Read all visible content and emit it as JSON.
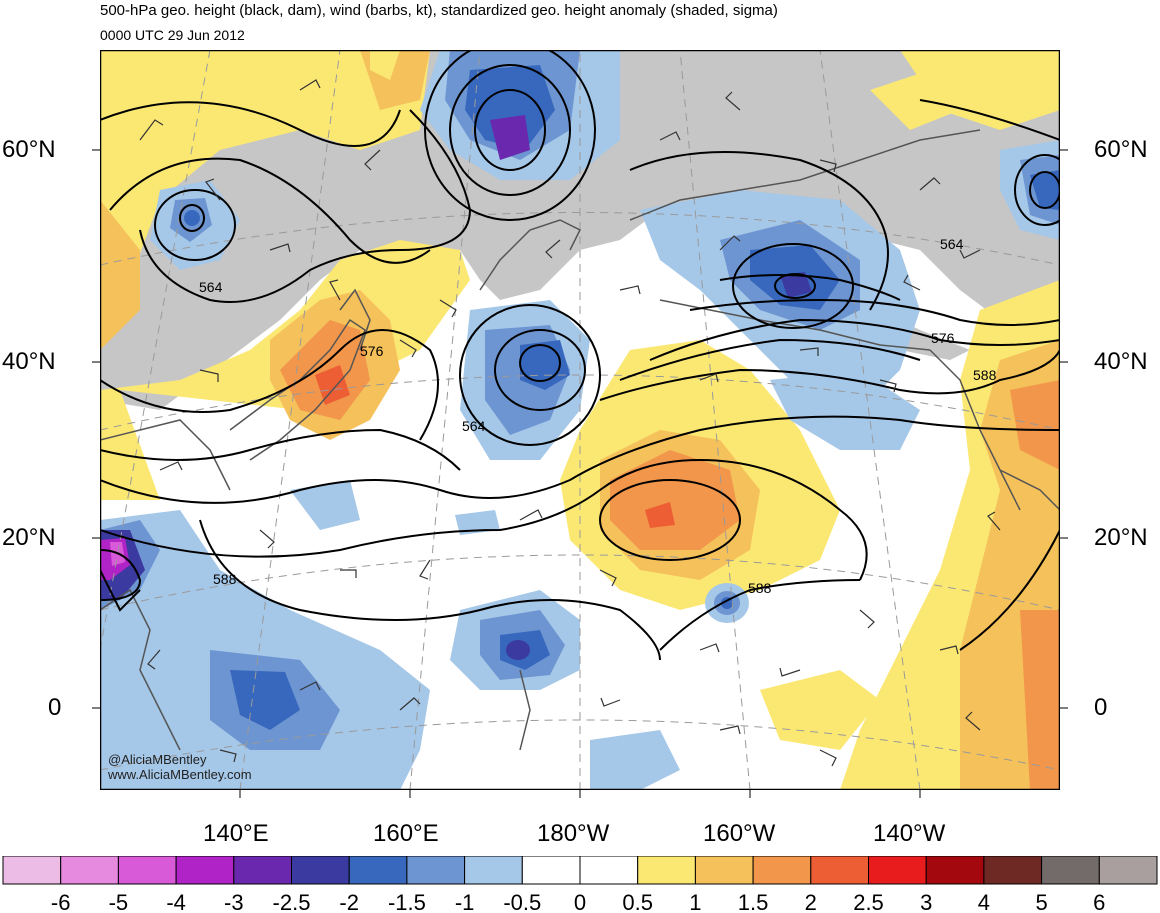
{
  "title": "500-hPa geo. height (black, dam), wind (barbs, kt), standardized geo. height anomaly (shaded, sigma)",
  "subtitle": "0000 UTC 29 Jun 2012",
  "lat_labels": [
    "60°N",
    "40°N",
    "20°N",
    "0"
  ],
  "lon_labels": [
    "140°E",
    "160°E",
    "180°W",
    "160°W",
    "140°W"
  ],
  "contour_labels": [
    "564",
    "576",
    "564",
    "564",
    "576",
    "588",
    "588",
    "588"
  ],
  "credit": {
    "handle": "@AliciaMBentley",
    "site": "www.AliciaMBentley.com"
  },
  "colorbar": {
    "ticks": [
      "-6",
      "-5",
      "-4",
      "-3",
      "-2.5",
      "-2",
      "-1.5",
      "-1",
      "-0.5",
      "0",
      "0.5",
      "1",
      "1.5",
      "2",
      "2.5",
      "3",
      "4",
      "5",
      "6"
    ],
    "colors": [
      "#ecbbe6",
      "#e68ae0",
      "#d95ad8",
      "#b023c6",
      "#6a28ae",
      "#3b3aa0",
      "#3868bd",
      "#6d95d1",
      "#a5c7e8",
      "#ffffff",
      "#ffffff",
      "#fbe873",
      "#f5c15a",
      "#f1964a",
      "#ee5e35",
      "#e81b1d",
      "#a3080e",
      "#6e2925",
      "#736a6a",
      "#a99f9f"
    ]
  },
  "colors": {
    "land": "#c6c6c6",
    "coast": "#555555",
    "contour": "#000000",
    "grid": "#9a9a9a"
  }
}
